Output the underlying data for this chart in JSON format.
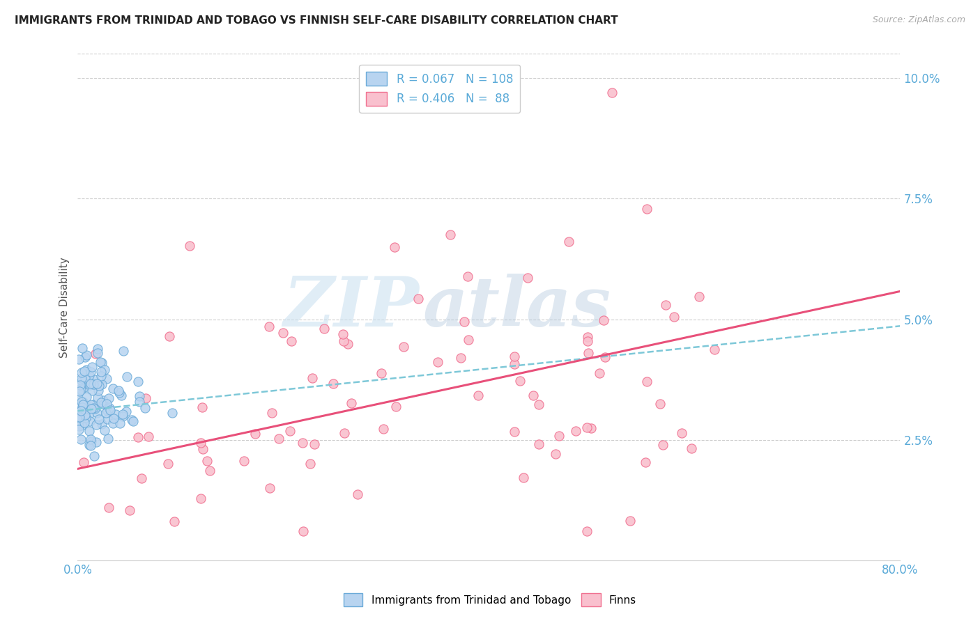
{
  "title": "IMMIGRANTS FROM TRINIDAD AND TOBAGO VS FINNISH SELF-CARE DISABILITY CORRELATION CHART",
  "source": "Source: ZipAtlas.com",
  "ylabel": "Self-Care Disability",
  "xlim": [
    0.0,
    0.8
  ],
  "ylim": [
    0.0,
    0.105
  ],
  "yticks_right": [
    0.025,
    0.05,
    0.075,
    0.1
  ],
  "ytick_right_labels": [
    "2.5%",
    "5.0%",
    "7.5%",
    "10.0%"
  ],
  "blue_R": 0.067,
  "blue_N": 108,
  "pink_R": 0.406,
  "pink_N": 88,
  "blue_color": "#b8d4f0",
  "blue_edge_color": "#6aaad8",
  "pink_color": "#f9c0ce",
  "pink_edge_color": "#f07090",
  "blue_line_color": "#7ec8d8",
  "pink_line_color": "#e8507a",
  "legend_blue_label": "Immigrants from Trinidad and Tobago",
  "legend_pink_label": "Finns",
  "watermark_zip": "ZIP",
  "watermark_atlas": "atlas",
  "background_color": "#ffffff",
  "grid_color": "#cccccc",
  "title_color": "#222222",
  "axis_label_color": "#555555",
  "tick_color": "#5aaad8",
  "legend_text_color": "#222222",
  "legend_value_color": "#5aaad8",
  "source_color": "#aaaaaa"
}
